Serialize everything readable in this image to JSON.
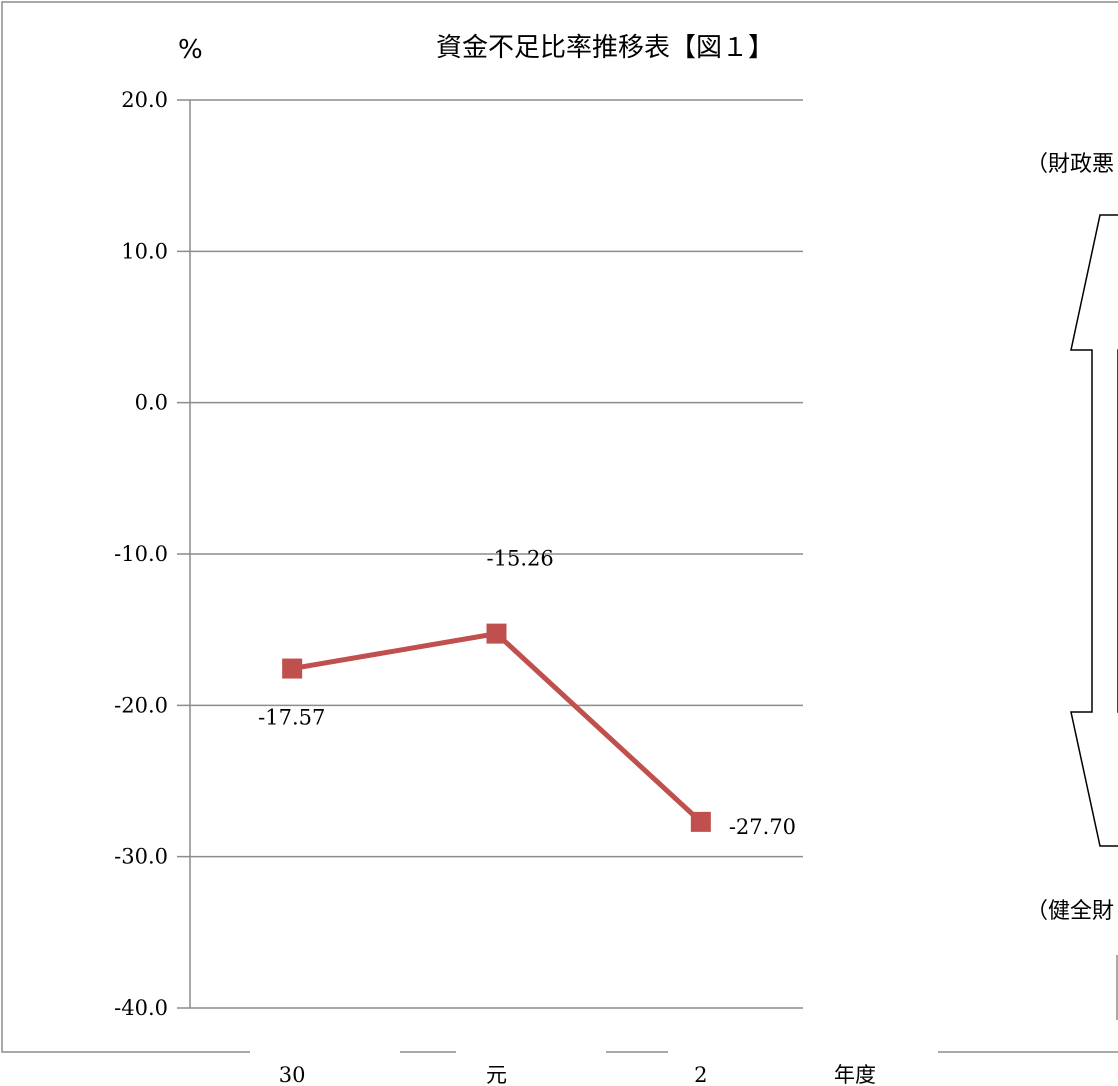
{
  "chart_data": {
    "type": "line",
    "title": "資金不足比率推移表【図１】",
    "ylabel": "%",
    "xlabel": "年度",
    "categories": [
      "30",
      "元",
      "2"
    ],
    "series": [
      {
        "values": [
          -17.57,
          -15.26,
          -27.7
        ]
      }
    ],
    "data_labels": [
      "-17.57",
      "-15.26",
      "-27.70"
    ],
    "ylim": [
      -40,
      20
    ],
    "yticks": [
      20,
      10,
      0,
      -10,
      -20,
      -30,
      -40
    ],
    "ytick_labels": [
      "20.0",
      "10.0",
      "0.0",
      "-10.0",
      "-20.0",
      "-30.0",
      "-40.0"
    ],
    "grid": true,
    "legend": "none",
    "series_color": "#c0504d"
  },
  "side": {
    "top_label": "（財政悪",
    "bottom_label": "（健全財"
  }
}
